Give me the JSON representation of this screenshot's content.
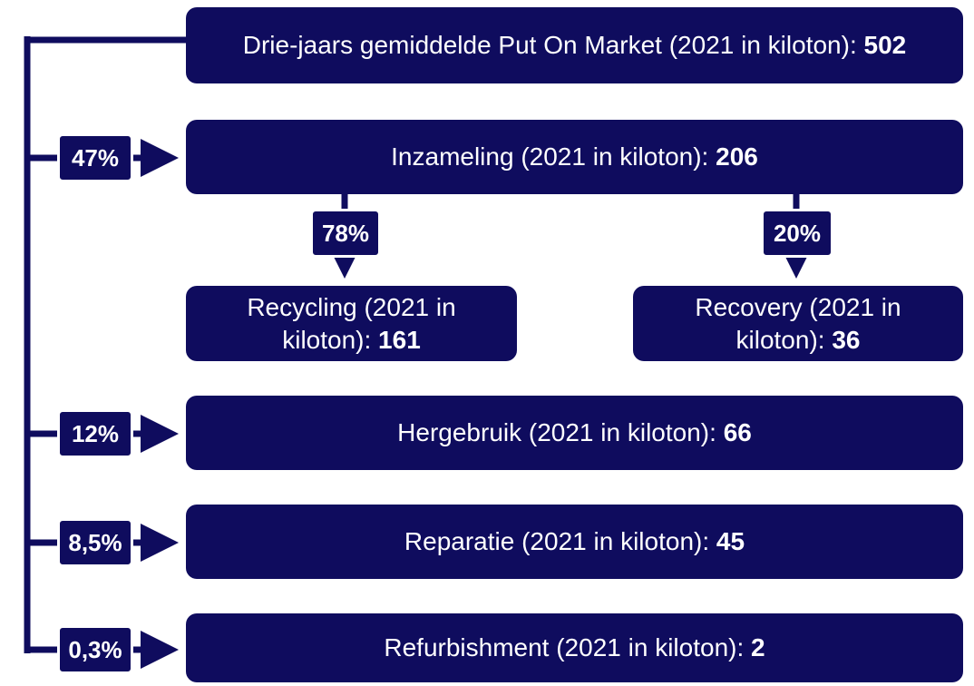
{
  "nodes": [
    {
      "label": "Drie-jaars gemiddelde Put On Market (2021 in kiloton):",
      "value": "502"
    },
    {
      "label": "Inzameling (2021 in kiloton):",
      "value": "206"
    },
    {
      "label": "Recycling (2021 in kiloton):",
      "value": "161"
    },
    {
      "label": "Recovery (2021 in kiloton):",
      "value": "36"
    },
    {
      "label": "Hergebruik (2021 in kiloton):",
      "value": "66"
    },
    {
      "label": "Reparatie (2021 in kiloton):",
      "value": "45"
    },
    {
      "label": "Refurbishment (2021 in kiloton):",
      "value": "2"
    }
  ],
  "edges": [
    "47%",
    "78%",
    "20%",
    "12%",
    "8,5%",
    "0,3%"
  ]
}
